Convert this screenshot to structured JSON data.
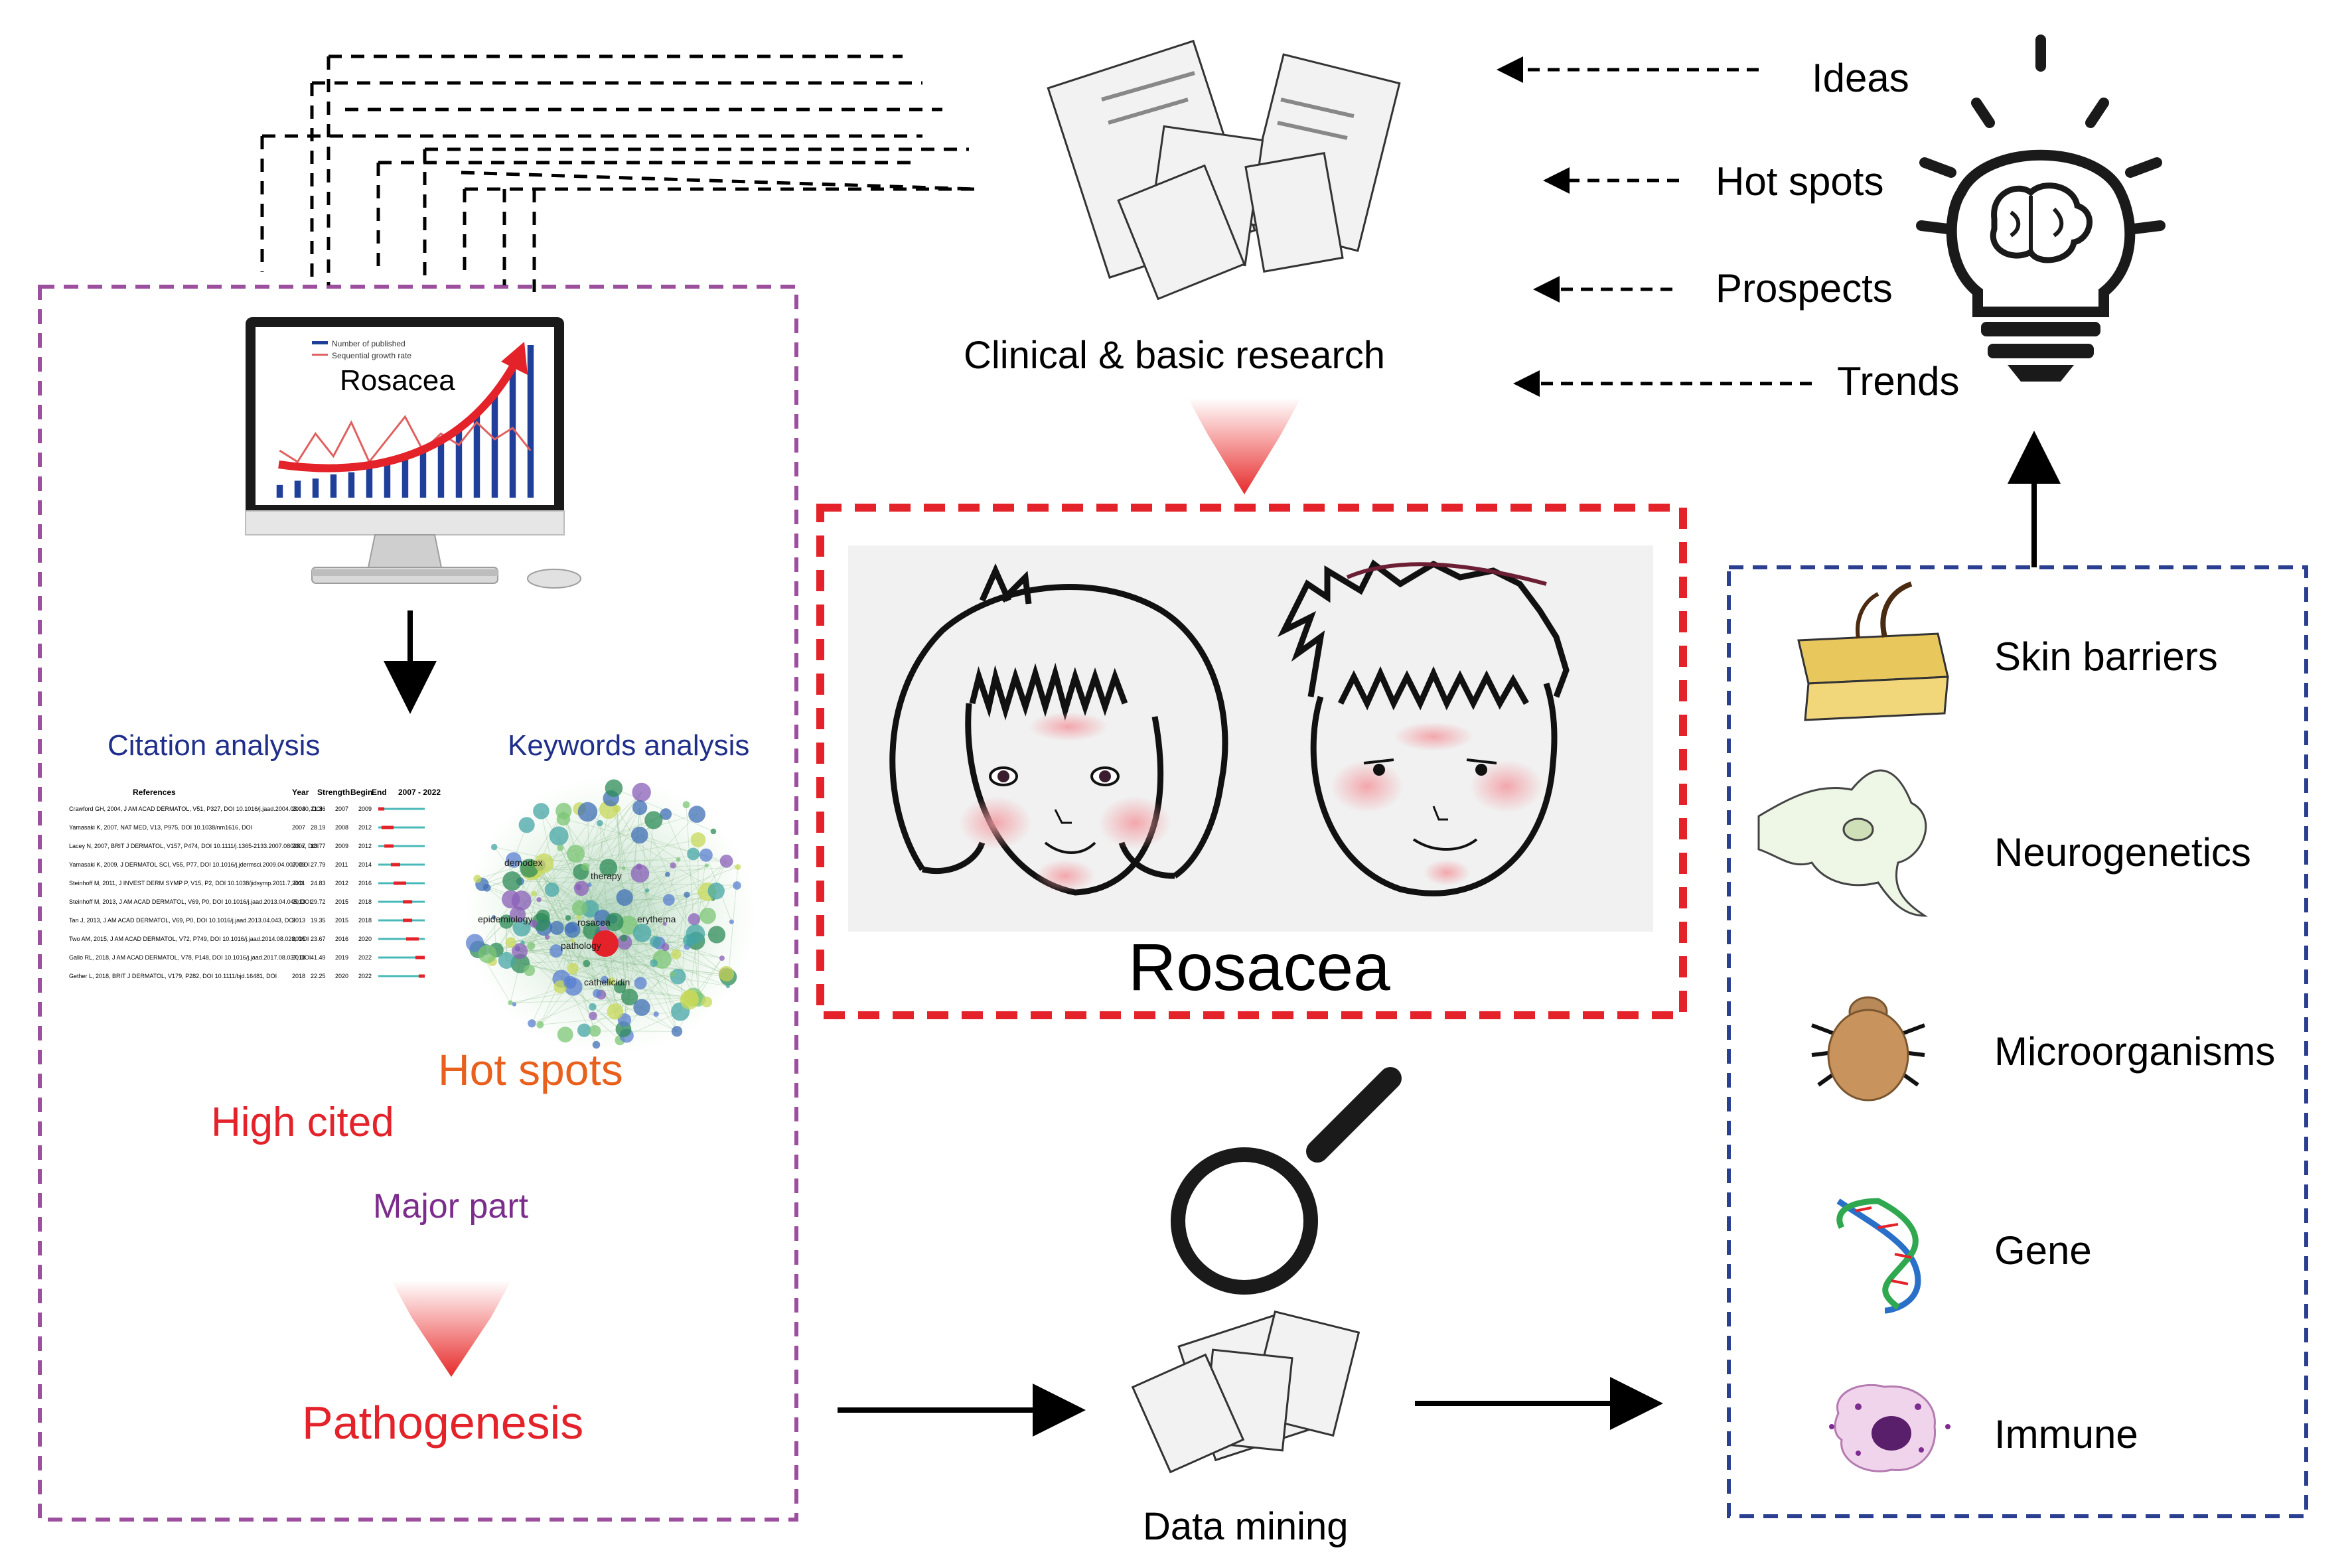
{
  "top_research_label": "Clinical & basic research",
  "outputs": {
    "ideas": "Ideas",
    "hot_spots": "Hot spots",
    "prospects": "Prospects",
    "trends": "Trends"
  },
  "left_panel": {
    "monitor_title": "Rosacea",
    "legend_published": "Number of published",
    "legend_growth": "Sequential growth rate",
    "citation_title": "Citation analysis",
    "keywords_title": "Keywords analysis",
    "table_headers": [
      "References",
      "Year",
      "Strength",
      "Begin",
      "End",
      "2007 - 2022"
    ],
    "table_rows": [
      {
        "ref": "Crawford GH, 2004, J AM ACAD DERMATOL, V51, P327, DOI 10.1016/j.jaad.2004.03.030, DOI",
        "year": "2004",
        "strength": "21.36",
        "begin": "2007",
        "end": "2009",
        "start": 0.0,
        "stop": 0.13
      },
      {
        "ref": "Yamasaki K, 2007, NAT MED, V13, P975, DOI 10.1038/nm1616, DOI",
        "year": "2007",
        "strength": "28.19",
        "begin": "2008",
        "end": "2012",
        "start": 0.07,
        "stop": 0.33
      },
      {
        "ref": "Lacey N, 2007, BRIT J DERMATOL, V157, P474, DOI 10.1111/j.1365-2133.2007.08028.x, DOI",
        "year": "2007",
        "strength": "18.77",
        "begin": "2009",
        "end": "2012",
        "start": 0.13,
        "stop": 0.33
      },
      {
        "ref": "Yamasaki K, 2009, J DERMATOL SCI, V55, P77, DOI 10.1016/j.jdermsci.2009.04.007, DOI",
        "year": "2009",
        "strength": "27.79",
        "begin": "2011",
        "end": "2014",
        "start": 0.27,
        "stop": 0.47
      },
      {
        "ref": "Steinhoff M, 2011, J INVEST DERM SYMP P, V15, P2, DOI 10.1038/jidsymp.2011.7, DOI",
        "year": "2011",
        "strength": "24.83",
        "begin": "2012",
        "end": "2016",
        "start": 0.33,
        "stop": 0.6
      },
      {
        "ref": "Steinhoff M, 2013, J AM ACAD DERMATOL, V69, P0, DOI 10.1016/j.jaad.2013.04.045, DOI",
        "year": "2013",
        "strength": "29.72",
        "begin": "2015",
        "end": "2018",
        "start": 0.53,
        "stop": 0.73
      },
      {
        "ref": "Tan J, 2013, J AM ACAD DERMATOL, V69, P0, DOI 10.1016/j.jaad.2013.04.043, DOI",
        "year": "2013",
        "strength": "19.35",
        "begin": "2015",
        "end": "2018",
        "start": 0.53,
        "stop": 0.73
      },
      {
        "ref": "Two AM, 2015, J AM ACAD DERMATOL, V72, P749, DOI 10.1016/j.jaad.2014.08.028, DOI",
        "year": "2015",
        "strength": "23.67",
        "begin": "2016",
        "end": "2020",
        "start": 0.6,
        "stop": 0.87
      },
      {
        "ref": "Gallo RL, 2018, J AM ACAD DERMATOL, V78, P148, DOI 10.1016/j.jaad.2017.08.037, DOI",
        "year": "2018",
        "strength": "41.49",
        "begin": "2019",
        "end": "2022",
        "start": 0.8,
        "stop": 1.0
      },
      {
        "ref": "Gether L, 2018, BRIT J DERMATOL, V179, P282, DOI 10.1111/bjd.16481, DOI",
        "year": "2018",
        "strength": "22.25",
        "begin": "2020",
        "end": "2022",
        "start": 0.87,
        "stop": 1.0
      }
    ],
    "network_terms": [
      "rosacea",
      "pathology",
      "demodex",
      "therapy",
      "erythema",
      "epidemiology",
      "cathelicidin"
    ],
    "hot_spots": "Hot spots",
    "high_cited": "High cited",
    "major_part": "Major part",
    "pathogenesis": "Pathogenesis"
  },
  "center": {
    "rosacea_label": "Rosacea",
    "data_mining": "Data mining"
  },
  "right_panel": {
    "items": [
      "Skin barriers",
      "Neurogenetics",
      "Microorganisms",
      "Gene",
      "Immune"
    ]
  },
  "colors": {
    "purple_border": "#9b4f9c",
    "red_border": "#e3222a",
    "blue_border": "#2a3f8f",
    "citation_title": "#1f2f8a",
    "keywords_title": "#1f2f8a",
    "hot_spots": "#e8601c",
    "high_cited": "#e3222a",
    "major_part": "#7b2c8c",
    "pathogenesis": "#e3222a"
  },
  "chart_data": {
    "type": "bar",
    "title": "Rosacea",
    "series": [
      {
        "name": "Number of published",
        "values": [
          6,
          8,
          9,
          11,
          12,
          14,
          16,
          18,
          22,
          26,
          32,
          40,
          50,
          62,
          72
        ]
      },
      {
        "name": "Sequential growth rate",
        "values": [
          30,
          20,
          45,
          25,
          55,
          20,
          40,
          60,
          30,
          45,
          35,
          55,
          40,
          50,
          30
        ]
      }
    ]
  }
}
